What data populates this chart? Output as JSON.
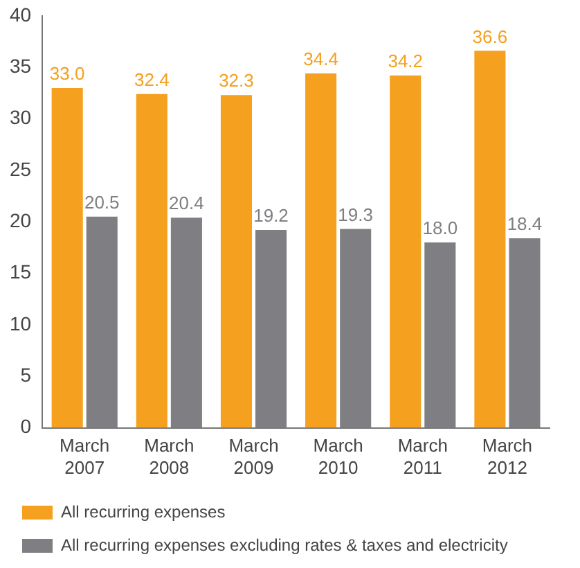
{
  "chart_data": {
    "type": "bar",
    "categories": [
      "March 2007",
      "March 2008",
      "March 2009",
      "March 2010",
      "March 2011",
      "March 2012"
    ],
    "series": [
      {
        "name": "All recurring expenses",
        "color": "#f5a01e",
        "values": [
          33.0,
          32.4,
          32.3,
          34.4,
          34.2,
          36.6
        ],
        "value_labels": [
          "33.0",
          "32.4",
          "32.3",
          "34.4",
          "34.2",
          "36.6"
        ]
      },
      {
        "name": "All recurring expenses excluding rates & taxes and electricity",
        "color": "#7f7f83",
        "values": [
          20.5,
          20.4,
          19.2,
          19.3,
          18.0,
          18.4
        ],
        "value_labels": [
          "20.5",
          "20.4",
          "19.2",
          "19.3",
          "18.0",
          "18.4"
        ]
      }
    ],
    "ylim": [
      0,
      40
    ],
    "yticks": [
      0,
      5,
      10,
      15,
      20,
      25,
      30,
      35,
      40
    ],
    "grid": false,
    "legend": "bottom"
  }
}
